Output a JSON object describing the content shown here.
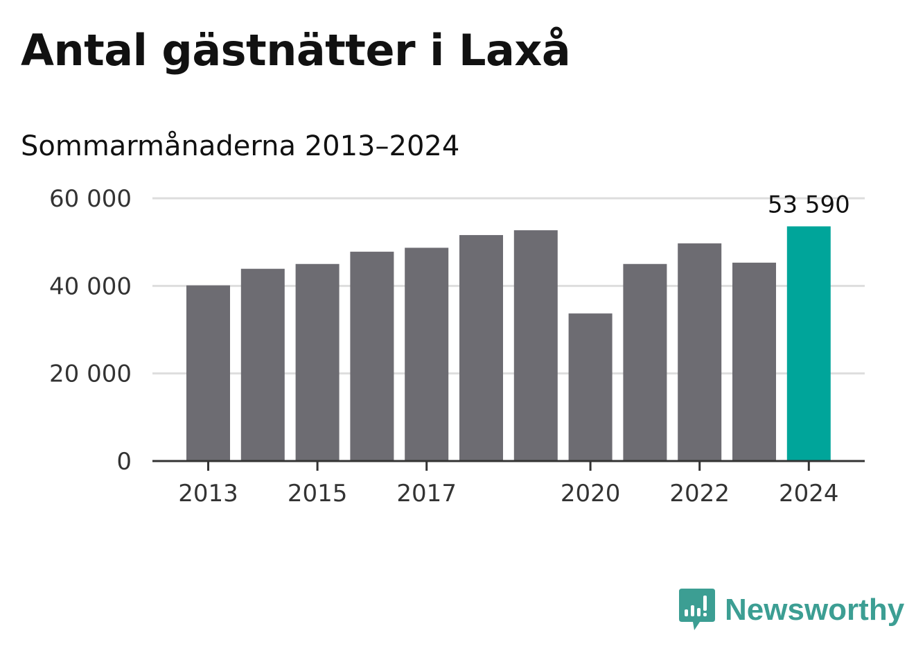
{
  "title": "Antal gästnätter i Laxå",
  "subtitle": "Sommarmånaderna 2013–2024",
  "brand": {
    "name": "Newsworthy",
    "color": "#3c9e93",
    "icon": "newsworthy-chart-bubble-icon"
  },
  "colors": {
    "bar": "#6d6c72",
    "highlight": "#00a59a",
    "grid": "#dddddd",
    "axis": "#333333"
  },
  "chart_data": {
    "type": "bar",
    "title": "Antal gästnätter i Laxå",
    "subtitle": "Sommarmånaderna 2013–2024",
    "xlabel": "",
    "ylabel": "",
    "categories": [
      "2013",
      "2014",
      "2015",
      "2016",
      "2017",
      "2018",
      "2019",
      "2020",
      "2021",
      "2022",
      "2023",
      "2024"
    ],
    "values": [
      40100,
      43900,
      45000,
      47800,
      48700,
      51600,
      52700,
      33700,
      45000,
      49700,
      45300,
      53590
    ],
    "highlight_index": 11,
    "highlight_label": "53 590",
    "x_tick_labels": [
      "2013",
      "2015",
      "2017",
      "2020",
      "2022",
      "2024"
    ],
    "y_tick_labels": [
      "0",
      "20 000",
      "40 000",
      "60 000"
    ],
    "y_ticks": [
      0,
      20000,
      40000,
      60000
    ],
    "ylim": [
      0,
      60000
    ],
    "grid": "horizontal",
    "legend": "none"
  }
}
